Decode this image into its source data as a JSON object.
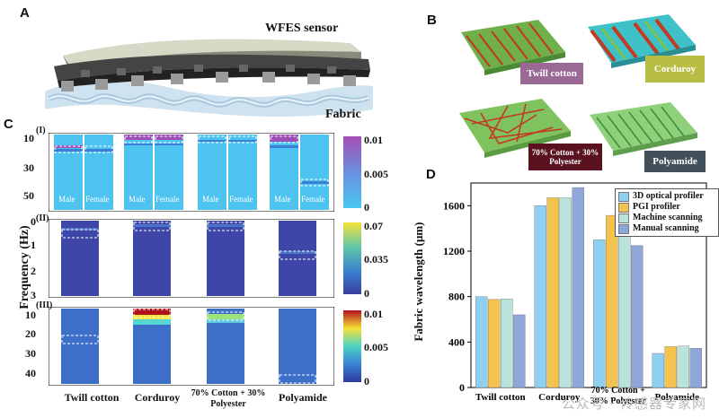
{
  "panels": {
    "a": {
      "letter": "A",
      "sensor_label": "WFES sensor",
      "fabric_label": "Fabric"
    },
    "b": {
      "letter": "B",
      "fabrics": [
        {
          "name": "Twill cotton",
          "tag_color": "#9a6a95"
        },
        {
          "name": "Corduroy",
          "tag_color": "#b8bd44"
        },
        {
          "name": "70% Cotton + 30% Polyester",
          "tag_color": "#5a1220"
        },
        {
          "name": "Polyamide",
          "tag_color": "#41505a"
        }
      ]
    },
    "c": {
      "letter": "C",
      "y_axis_label": "Frequency (Hz)",
      "sub_labels": [
        "(I)",
        "(II)",
        "(III)"
      ],
      "sub1_ticks": [
        "10",
        "30",
        "50"
      ],
      "sub2_ticks": [
        "0",
        "1",
        "2",
        "3"
      ],
      "sub3_ticks": [
        "10",
        "20",
        "30",
        "40"
      ],
      "gender_labels": [
        "Male",
        "Female"
      ],
      "colorbar1": {
        "ticks": [
          "0.01",
          "0.005",
          "0"
        ]
      },
      "colorbar2": {
        "ticks": [
          "0.07",
          "0.035",
          "0"
        ]
      },
      "colorbar3": {
        "ticks": [
          "0.01",
          "0.005",
          "0"
        ]
      },
      "x_labels": [
        "Twill cotton",
        "Corduroy",
        "70% Cotton + 30% Polyester",
        "Polyamide"
      ]
    },
    "d": {
      "letter": "D"
    }
  },
  "chart_data": {
    "type": "bar",
    "categories": [
      "Twill cotton",
      "Corduroy",
      "70% Cotton + 30% Polyester",
      "Polyamide"
    ],
    "series": [
      {
        "name": "3D optical profiler",
        "color": "#8fcff0",
        "values": [
          800,
          1600,
          1300,
          300
        ]
      },
      {
        "name": "PGI profiler",
        "color": "#f3c34e",
        "values": [
          775,
          1670,
          1515,
          360
        ]
      },
      {
        "name": "Machine scanning",
        "color": "#b9e3dc",
        "values": [
          780,
          1670,
          1360,
          365
        ]
      },
      {
        "name": "Manual scanning",
        "color": "#8fa6da",
        "values": [
          640,
          1760,
          1250,
          345
        ]
      }
    ],
    "ylabel": "Fabric wavelength (μm)",
    "yticks": [
      0,
      400,
      800,
      1200,
      1600
    ],
    "ylim": [
      0,
      1800
    ],
    "legend": "top-right"
  },
  "watermark": "公众号 · 传感器专家网"
}
